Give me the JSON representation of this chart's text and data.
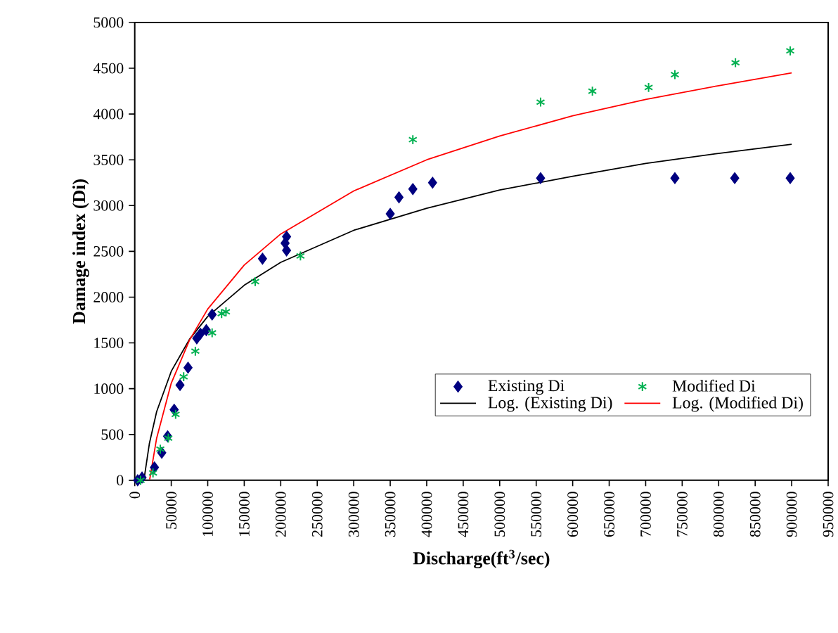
{
  "chart_data": {
    "type": "scatter",
    "xlabel": "Discharge(ft$^{3}$/sec)",
    "ylabel": "Damage index (Di)",
    "xlim": [
      0,
      950000
    ],
    "ylim": [
      0,
      5000
    ],
    "xticks": [
      0,
      50000,
      100000,
      150000,
      200000,
      250000,
      300000,
      350000,
      400000,
      450000,
      500000,
      550000,
      600000,
      650000,
      700000,
      750000,
      800000,
      850000,
      900000,
      950000
    ],
    "yticks": [
      0,
      500,
      1000,
      1500,
      2000,
      2500,
      3000,
      3500,
      4000,
      4500,
      5000
    ],
    "grid": false,
    "legend": "bottom right",
    "series": [
      {
        "name": "Existing Di",
        "marker": "diamond",
        "color": "#000080",
        "x": [
          4000,
          10000,
          27000,
          37000,
          45000,
          54000,
          62000,
          73000,
          85000,
          90000,
          98000,
          106000,
          175000,
          208000,
          206000,
          208000,
          350000,
          362000,
          381000,
          408000,
          556000,
          740000,
          822000,
          898000
        ],
        "values": [
          0,
          30,
          140,
          300,
          480,
          770,
          1040,
          1230,
          1550,
          1600,
          1640,
          1810,
          2420,
          2660,
          2590,
          2510,
          2910,
          3090,
          3180,
          3250,
          3300,
          3300,
          3300,
          3300
        ]
      },
      {
        "name": "Modified Di",
        "marker": "cross",
        "color": "#00b050",
        "x": [
          8000,
          25000,
          35000,
          46000,
          56000,
          67000,
          83000,
          106000,
          119000,
          125000,
          165000,
          227000,
          381000,
          556000,
          627000,
          704000,
          740000,
          823000,
          898000
        ],
        "values": [
          0,
          80,
          340,
          460,
          720,
          1130,
          1410,
          1610,
          1820,
          1840,
          2170,
          2450,
          3720,
          4130,
          4250,
          4290,
          4430,
          4560,
          4690
        ]
      },
      {
        "name": "Log. (Existing Di)",
        "type": "line",
        "marker": "none",
        "line_style": "solid",
        "color": "#000000",
        "x": [
          12500,
          20000,
          30000,
          50000,
          75000,
          100000,
          150000,
          200000,
          300000,
          400000,
          500000,
          600000,
          700000,
          800000,
          900000
        ],
        "values": [
          0,
          400,
          750,
          1190,
          1540,
          1790,
          2130,
          2380,
          2730,
          2970,
          3170,
          3320,
          3460,
          3570,
          3670
        ]
      },
      {
        "name": "Log. (Modified Di)",
        "type": "line",
        "marker": "none",
        "line_style": "solid",
        "color": "#ff0000",
        "x": [
          20500,
          30000,
          50000,
          75000,
          100000,
          150000,
          200000,
          300000,
          400000,
          500000,
          600000,
          700000,
          800000,
          900000
        ],
        "values": [
          10,
          460,
          1060,
          1530,
          1870,
          2350,
          2690,
          3160,
          3500,
          3760,
          3980,
          4160,
          4310,
          4450
        ]
      }
    ]
  }
}
